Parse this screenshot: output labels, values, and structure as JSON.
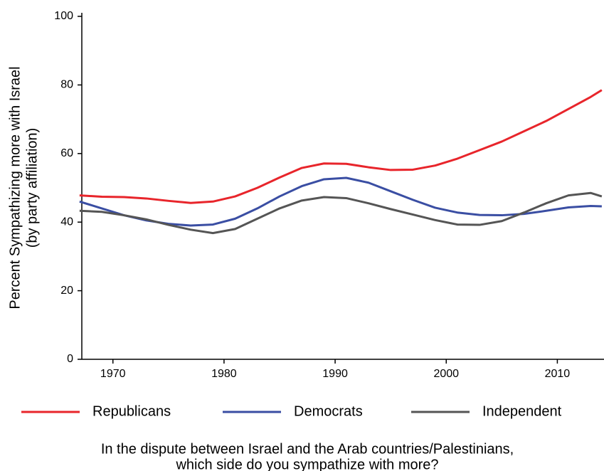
{
  "chart_data": {
    "type": "line",
    "y_label": [
      "Percent Sympathizing more with Israel",
      "(by party affiliation)"
    ],
    "caption": [
      "In the dispute between Israel and the Arab countries/Palestinians,",
      "which side do you sympathize with more?"
    ],
    "x": [
      1967,
      1969,
      1971,
      1973,
      1975,
      1977,
      1979,
      1981,
      1983,
      1985,
      1987,
      1989,
      1991,
      1993,
      1995,
      1997,
      1999,
      2001,
      2003,
      2005,
      2007,
      2009,
      2011,
      2013,
      2014
    ],
    "series": [
      {
        "name": "Republicans",
        "color": "#e8252b",
        "values": [
          47.8,
          47.4,
          47.3,
          46.9,
          46.2,
          45.6,
          46,
          47.5,
          50,
          53,
          55.8,
          57.1,
          57,
          56,
          55.2,
          55.3,
          56.5,
          58.5,
          61,
          63.5,
          66.5,
          69.5,
          73,
          76.5,
          78.5
        ]
      },
      {
        "name": "Democrats",
        "color": "#3a4ea3",
        "values": [
          46,
          44,
          42,
          40.5,
          39.5,
          39,
          39.3,
          41,
          44,
          47.5,
          50.5,
          52.5,
          52.9,
          51.5,
          49,
          46.5,
          44.2,
          42.8,
          42.1,
          42,
          42.4,
          43.3,
          44.3,
          44.7,
          44.6
        ]
      },
      {
        "name": "Independent",
        "color": "#555555",
        "values": [
          43.3,
          43,
          42,
          40.8,
          39.2,
          37.8,
          36.8,
          38,
          41,
          44,
          46.3,
          47.3,
          47,
          45.5,
          43.8,
          42.2,
          40.6,
          39.3,
          39.2,
          40.3,
          42.8,
          45.5,
          47.8,
          48.5,
          47.5
        ]
      }
    ],
    "xlim": [
      1967.2,
      2014.2
    ],
    "xticks": [
      1970,
      1980,
      1990,
      2000,
      2010
    ],
    "ylim": [
      0,
      100
    ],
    "yticks": [
      0,
      20,
      40,
      60,
      80,
      100
    ]
  }
}
